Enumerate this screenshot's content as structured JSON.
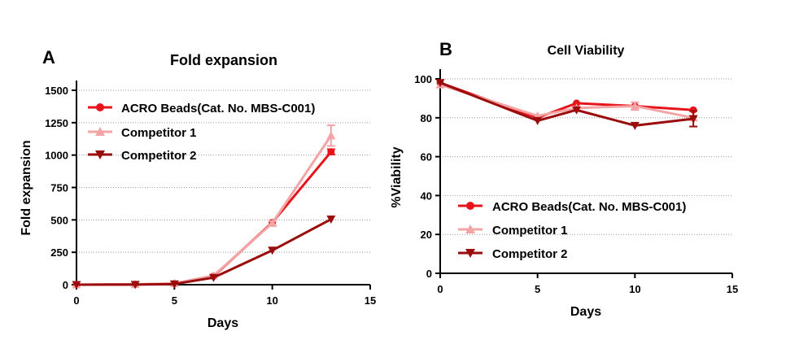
{
  "chart_data": [
    {
      "panel": "A",
      "type": "line",
      "title": "Fold expansion",
      "xlabel": "Days",
      "ylabel": "Fold expansion",
      "xlim": [
        0,
        15
      ],
      "ylim": [
        0,
        1500
      ],
      "xticks": [
        0,
        5,
        10,
        15
      ],
      "yticks": [
        0,
        250,
        500,
        750,
        1000,
        1250,
        1500
      ],
      "grid": "horizontal dotted",
      "legend_position": "top-left",
      "series": [
        {
          "name": "ACRO Beads(Cat. No. MBS-C001)",
          "color": "#e8141b",
          "marker": "circle",
          "x": [
            0,
            3,
            5,
            7,
            10,
            13
          ],
          "values": [
            0,
            2,
            8,
            65,
            480,
            1025
          ],
          "errors": [
            0,
            0,
            0,
            0,
            0,
            20
          ]
        },
        {
          "name": "Competitor 1",
          "color": "#f4a4a4",
          "marker": "triangle-up",
          "x": [
            0,
            3,
            5,
            7,
            10,
            13
          ],
          "values": [
            0,
            2,
            10,
            70,
            475,
            1150
          ],
          "errors": [
            0,
            0,
            0,
            0,
            15,
            80
          ]
        },
        {
          "name": "Competitor 2",
          "color": "#9b0c0c",
          "marker": "triangle-down",
          "x": [
            0,
            3,
            5,
            7,
            10,
            13
          ],
          "values": [
            0,
            1,
            5,
            55,
            265,
            505
          ],
          "errors": [
            0,
            0,
            0,
            0,
            0,
            0
          ]
        }
      ]
    },
    {
      "panel": "B",
      "type": "line",
      "title": "Cell Viability",
      "xlabel": "Days",
      "ylabel": "%Viability",
      "xlim": [
        0,
        15
      ],
      "ylim": [
        0,
        100
      ],
      "xticks": [
        0,
        5,
        10,
        15
      ],
      "yticks": [
        0,
        20,
        40,
        60,
        80,
        100
      ],
      "grid": "horizontal dotted",
      "legend_position": "bottom-left",
      "series": [
        {
          "name": "ACRO Beads(Cat. No. MBS-C001)",
          "color": "#e8141b",
          "marker": "circle",
          "x": [
            0,
            5,
            7,
            10,
            13
          ],
          "values": [
            98,
            80,
            87.5,
            86,
            84
          ],
          "errors": [
            0,
            0,
            0,
            0,
            0
          ]
        },
        {
          "name": "Competitor 1",
          "color": "#f4a4a4",
          "marker": "triangle-up",
          "x": [
            0,
            5,
            7,
            10,
            13
          ],
          "values": [
            97,
            81,
            85,
            86,
            80
          ],
          "errors": [
            0,
            0,
            0,
            2,
            0
          ]
        },
        {
          "name": "Competitor 2",
          "color": "#9b0c0c",
          "marker": "triangle-down",
          "x": [
            0,
            5,
            7,
            10,
            13
          ],
          "values": [
            98,
            78.5,
            84,
            76,
            79.5
          ],
          "errors": [
            0,
            0,
            0,
            0,
            4
          ]
        }
      ]
    }
  ]
}
